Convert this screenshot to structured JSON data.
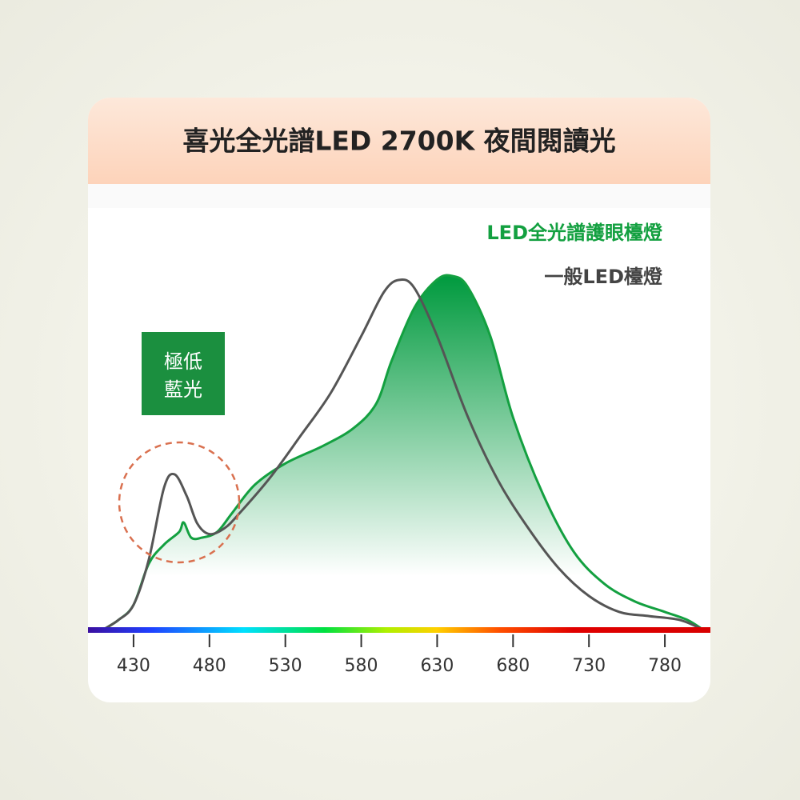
{
  "chart_data": {
    "type": "line",
    "title": "喜光全光譜LED 2700K 夜間閱讀光",
    "annotation": [
      "極低",
      "藍光"
    ],
    "xlim": [
      400,
      810
    ],
    "xticks": [
      430,
      480,
      530,
      580,
      630,
      680,
      730,
      780
    ],
    "ylim": [
      0,
      100
    ],
    "series": [
      {
        "name": "LED全光譜護眼檯燈",
        "color": "#13a040",
        "fill": true,
        "x": [
          410,
          420,
          430,
          440,
          450,
          460,
          463,
          468,
          475,
          485,
          495,
          510,
          530,
          555,
          575,
          590,
          600,
          615,
          630,
          640,
          650,
          665,
          680,
          700,
          720,
          740,
          760,
          780,
          795,
          805
        ],
        "values": [
          0,
          2.7,
          7,
          18.6,
          24,
          27.6,
          30.3,
          26,
          26,
          27.6,
          33,
          41,
          47,
          52,
          57,
          64,
          76,
          91,
          99,
          100,
          97,
          83,
          60,
          38,
          22,
          13,
          8,
          5,
          2.7,
          0
        ]
      },
      {
        "name": "一般LED檯燈",
        "color": "#555555",
        "fill": false,
        "x": [
          410,
          420,
          430,
          440,
          450,
          457,
          465,
          472,
          480,
          490,
          500,
          520,
          540,
          560,
          580,
          595,
          605,
          615,
          630,
          650,
          670,
          690,
          710,
          730,
          750,
          770,
          790,
          805
        ],
        "values": [
          0,
          2.7,
          7,
          19.7,
          40,
          43.9,
          37.8,
          30,
          27,
          28.7,
          33,
          43,
          54.8,
          67,
          83,
          95.5,
          98.9,
          96.6,
          83,
          60.4,
          42.3,
          28.7,
          17.4,
          9.5,
          5,
          3.8,
          2.7,
          0
        ]
      }
    ]
  }
}
